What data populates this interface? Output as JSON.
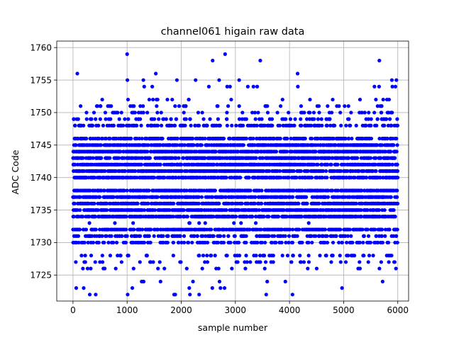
{
  "chart_data": {
    "type": "scatter",
    "title": "channel061 higain raw data",
    "xlabel": "sample number",
    "ylabel": "ADC Code",
    "xlim": [
      -300,
      6200
    ],
    "ylim": [
      1721,
      1761
    ],
    "xticks": [
      0,
      1000,
      2000,
      3000,
      4000,
      5000,
      6000
    ],
    "yticks": [
      1725,
      1730,
      1735,
      1740,
      1745,
      1750,
      1755,
      1760
    ],
    "grid": true,
    "marker_color": "#0000ff",
    "n_samples": 6000,
    "level_weights": [
      [
        1734,
        10
      ],
      [
        1735,
        10
      ],
      [
        1736,
        10
      ],
      [
        1737,
        10
      ],
      [
        1738,
        10
      ],
      [
        1740,
        10
      ],
      [
        1741,
        10
      ],
      [
        1742,
        10
      ],
      [
        1743,
        10
      ],
      [
        1744,
        10
      ],
      [
        1745,
        10
      ],
      [
        1732,
        8
      ],
      [
        1746,
        7
      ],
      [
        1731,
        4
      ],
      [
        1748,
        4
      ],
      [
        1730,
        3
      ],
      [
        1749,
        2
      ],
      [
        1728,
        1.5
      ],
      [
        1750,
        1.5
      ],
      [
        1727,
        1
      ],
      [
        1751,
        1
      ],
      [
        1726,
        0.6
      ],
      [
        1752,
        0.5
      ],
      [
        1754,
        0.3
      ],
      [
        1733,
        0.3
      ],
      [
        1724,
        0.2
      ],
      [
        1723,
        0.15
      ],
      [
        1722,
        0.1
      ],
      [
        1755,
        0.1
      ]
    ],
    "outliers": [
      {
        "x": 80,
        "y": 1756
      },
      {
        "x": 60,
        "y": 1723
      },
      {
        "x": 310,
        "y": 1722
      },
      {
        "x": 420,
        "y": 1722
      },
      {
        "x": 1000,
        "y": 1759
      },
      {
        "x": 1010,
        "y": 1722
      },
      {
        "x": 1300,
        "y": 1755
      },
      {
        "x": 1530,
        "y": 1756
      },
      {
        "x": 1890,
        "y": 1722
      },
      {
        "x": 2160,
        "y": 1722
      },
      {
        "x": 2330,
        "y": 1722
      },
      {
        "x": 2580,
        "y": 1758
      },
      {
        "x": 2700,
        "y": 1755
      },
      {
        "x": 2810,
        "y": 1759
      },
      {
        "x": 2800,
        "y": 1723
      },
      {
        "x": 3070,
        "y": 1755
      },
      {
        "x": 3460,
        "y": 1758
      },
      {
        "x": 3570,
        "y": 1722
      },
      {
        "x": 4150,
        "y": 1756
      },
      {
        "x": 4970,
        "y": 1723
      },
      {
        "x": 5660,
        "y": 1758
      },
      {
        "x": 5720,
        "y": 1724
      },
      {
        "x": 5900,
        "y": 1754
      }
    ]
  }
}
